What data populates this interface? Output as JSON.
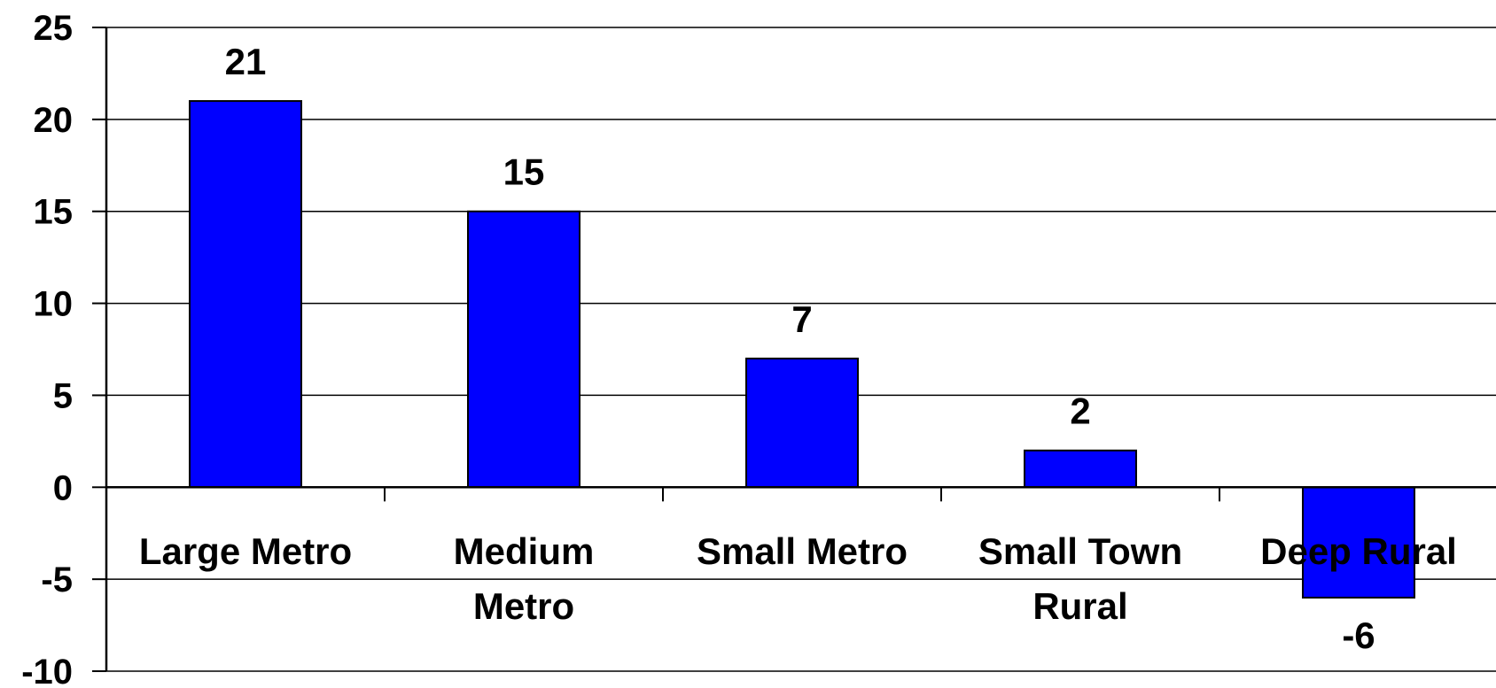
{
  "chart_data": {
    "type": "bar",
    "categories": [
      [
        "Large Metro"
      ],
      [
        "Medium",
        "Metro"
      ],
      [
        "Small Metro"
      ],
      [
        "Small Town",
        "Rural"
      ],
      [
        "Deep Rural"
      ]
    ],
    "values": [
      21,
      15,
      7,
      2,
      -6
    ],
    "data_labels": [
      "21",
      "15",
      "7",
      "2",
      "-6"
    ],
    "yticks": [
      "25",
      "20",
      "15",
      "10",
      "5",
      "0",
      "-5",
      "-10"
    ],
    "ylim": [
      -10,
      25
    ],
    "title": "",
    "xlabel": "",
    "ylabel": "",
    "grid": true,
    "legend": "none",
    "colors": {
      "bar": "#0000ff",
      "bar_edge": "#000000",
      "grid": "#000000"
    }
  }
}
